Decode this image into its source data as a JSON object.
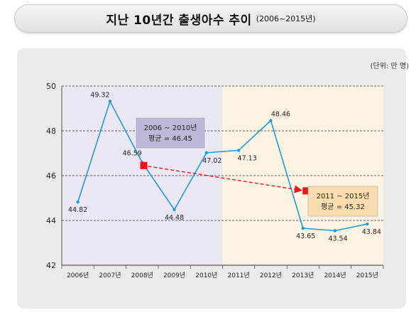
{
  "header": {
    "title": "지난 10년간 출생아수 추이",
    "subtitle": "(2006~2015년)"
  },
  "unit": "(단위: 만 명)",
  "colors": {
    "line": "#1f9ad6",
    "trend": "#e8141e",
    "period1_bg": "#ebe8f3",
    "period2_bg": "#fdf3e3",
    "box1": "#bfb6d8",
    "box2": "#fbdcb1"
  },
  "chart_data": {
    "type": "line",
    "categories": [
      "2006년",
      "2007년",
      "2008년",
      "2009년",
      "2010년",
      "2011년",
      "2012년",
      "2013년",
      "2014년",
      "2015년"
    ],
    "values": [
      44.82,
      49.32,
      46.59,
      44.48,
      47.02,
      47.13,
      48.46,
      43.65,
      43.54,
      43.84
    ],
    "value_labels": [
      "44.82",
      "49.32",
      "46.59",
      "44.48",
      "47.02",
      "47.13",
      "48.46",
      "43.65",
      "43.54",
      "43.84"
    ],
    "ylim": [
      42,
      50
    ],
    "yticks": [
      42,
      44,
      46,
      48,
      50
    ],
    "grid": true,
    "averages": [
      {
        "label_line1": "2006 ~ 2010년",
        "label_line2": "평균 = 46.45",
        "value": 46.45
      },
      {
        "label_line1": "2011 ~ 2015년",
        "label_line2": "평균 = 45.32",
        "value": 45.32
      }
    ]
  }
}
